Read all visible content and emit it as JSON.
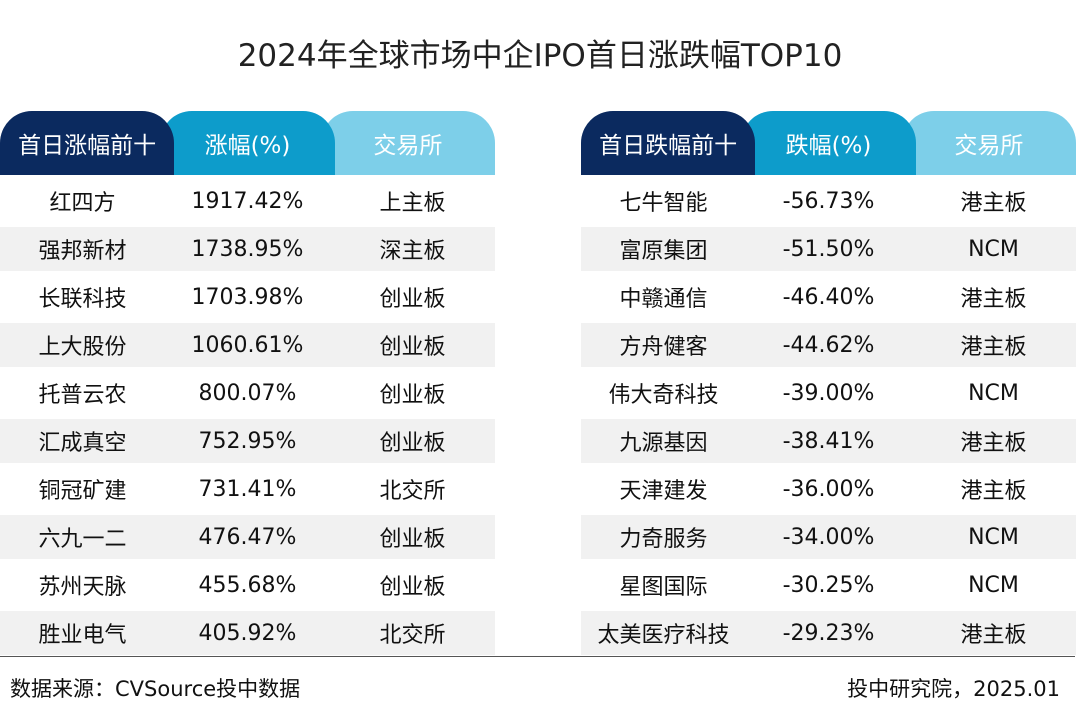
{
  "title": "2024年全球市场中企IPO首日涨跌幅TOP10",
  "colors": {
    "header_dark": "#0b2a5f",
    "header_mid": "#0d9ccb",
    "header_light": "#7dcfe9",
    "row_alt": "#f1f1f1"
  },
  "chart_data": {
    "type": "table",
    "title": "2024年全球市场中企IPO首日涨跌幅TOP10",
    "tables": [
      {
        "headers": [
          "首日涨幅前十",
          "涨幅(%)",
          "交易所"
        ],
        "rows": [
          [
            "红四方",
            "1917.42%",
            "上主板"
          ],
          [
            "强邦新材",
            "1738.95%",
            "深主板"
          ],
          [
            "长联科技",
            "1703.98%",
            "创业板"
          ],
          [
            "上大股份",
            "1060.61%",
            "创业板"
          ],
          [
            "托普云农",
            "800.07%",
            "创业板"
          ],
          [
            "汇成真空",
            "752.95%",
            "创业板"
          ],
          [
            "铜冠矿建",
            "731.41%",
            "北交所"
          ],
          [
            "六九一二",
            "476.47%",
            "创业板"
          ],
          [
            "苏州天脉",
            "455.68%",
            "创业板"
          ],
          [
            "胜业电气",
            "405.92%",
            "北交所"
          ]
        ]
      },
      {
        "headers": [
          "首日跌幅前十",
          "跌幅(%)",
          "交易所"
        ],
        "rows": [
          [
            "七牛智能",
            "-56.73%",
            "港主板"
          ],
          [
            "富原集团",
            "-51.50%",
            "NCM"
          ],
          [
            "中赣通信",
            "-46.40%",
            "港主板"
          ],
          [
            "方舟健客",
            "-44.62%",
            "港主板"
          ],
          [
            "伟大奇科技",
            "-39.00%",
            "NCM"
          ],
          [
            "九源基因",
            "-38.41%",
            "港主板"
          ],
          [
            "天津建发",
            "-36.00%",
            "港主板"
          ],
          [
            "力奇服务",
            "-34.00%",
            "NCM"
          ],
          [
            "星图国际",
            "-30.25%",
            "NCM"
          ],
          [
            "太美医疗科技",
            "-29.23%",
            "港主板"
          ]
        ]
      }
    ]
  },
  "footer": {
    "source": "数据来源：CVSource投中数据",
    "credit": "投中研究院，2025.01"
  }
}
